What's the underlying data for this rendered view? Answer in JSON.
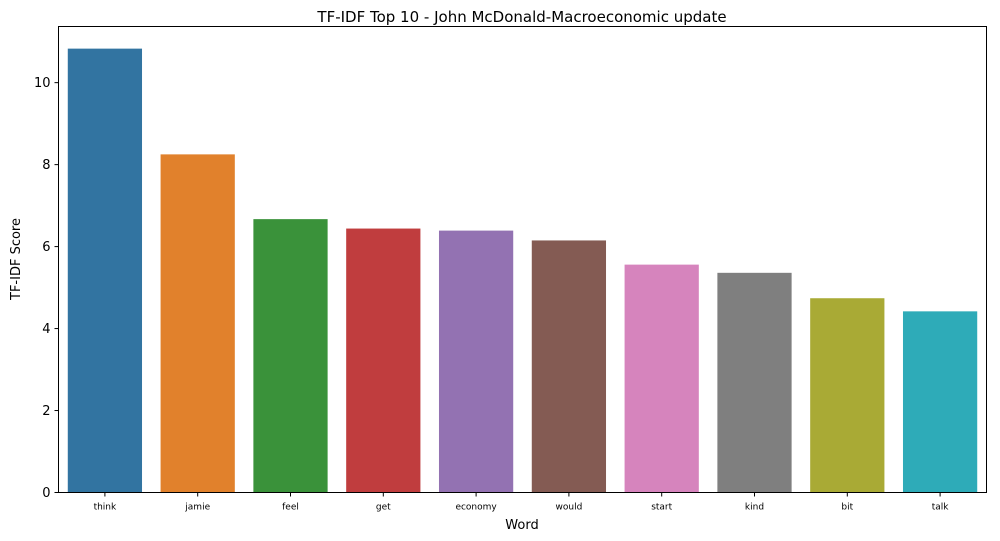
{
  "chart_data": {
    "type": "bar",
    "title": "TF-IDF Top 10 - John McDonald-Macroeconomic update",
    "xlabel": "Word",
    "ylabel": "TF-IDF Score",
    "categories": [
      "think",
      "jamie",
      "feel",
      "get",
      "economy",
      "would",
      "start",
      "kind",
      "bit",
      "talk"
    ],
    "values": [
      10.83,
      8.25,
      6.67,
      6.44,
      6.39,
      6.15,
      5.56,
      5.36,
      4.74,
      4.42
    ],
    "colors": [
      "#3274a1",
      "#e1812c",
      "#3a923a",
      "#c03d3e",
      "#9372b2",
      "#845b53",
      "#d684bd",
      "#7f7f7f",
      "#a9aa35",
      "#2eabb8"
    ],
    "ylim": [
      0,
      11.37
    ],
    "yticks": [
      0,
      2,
      4,
      6,
      8,
      10
    ],
    "grid": false,
    "legend": "none"
  }
}
